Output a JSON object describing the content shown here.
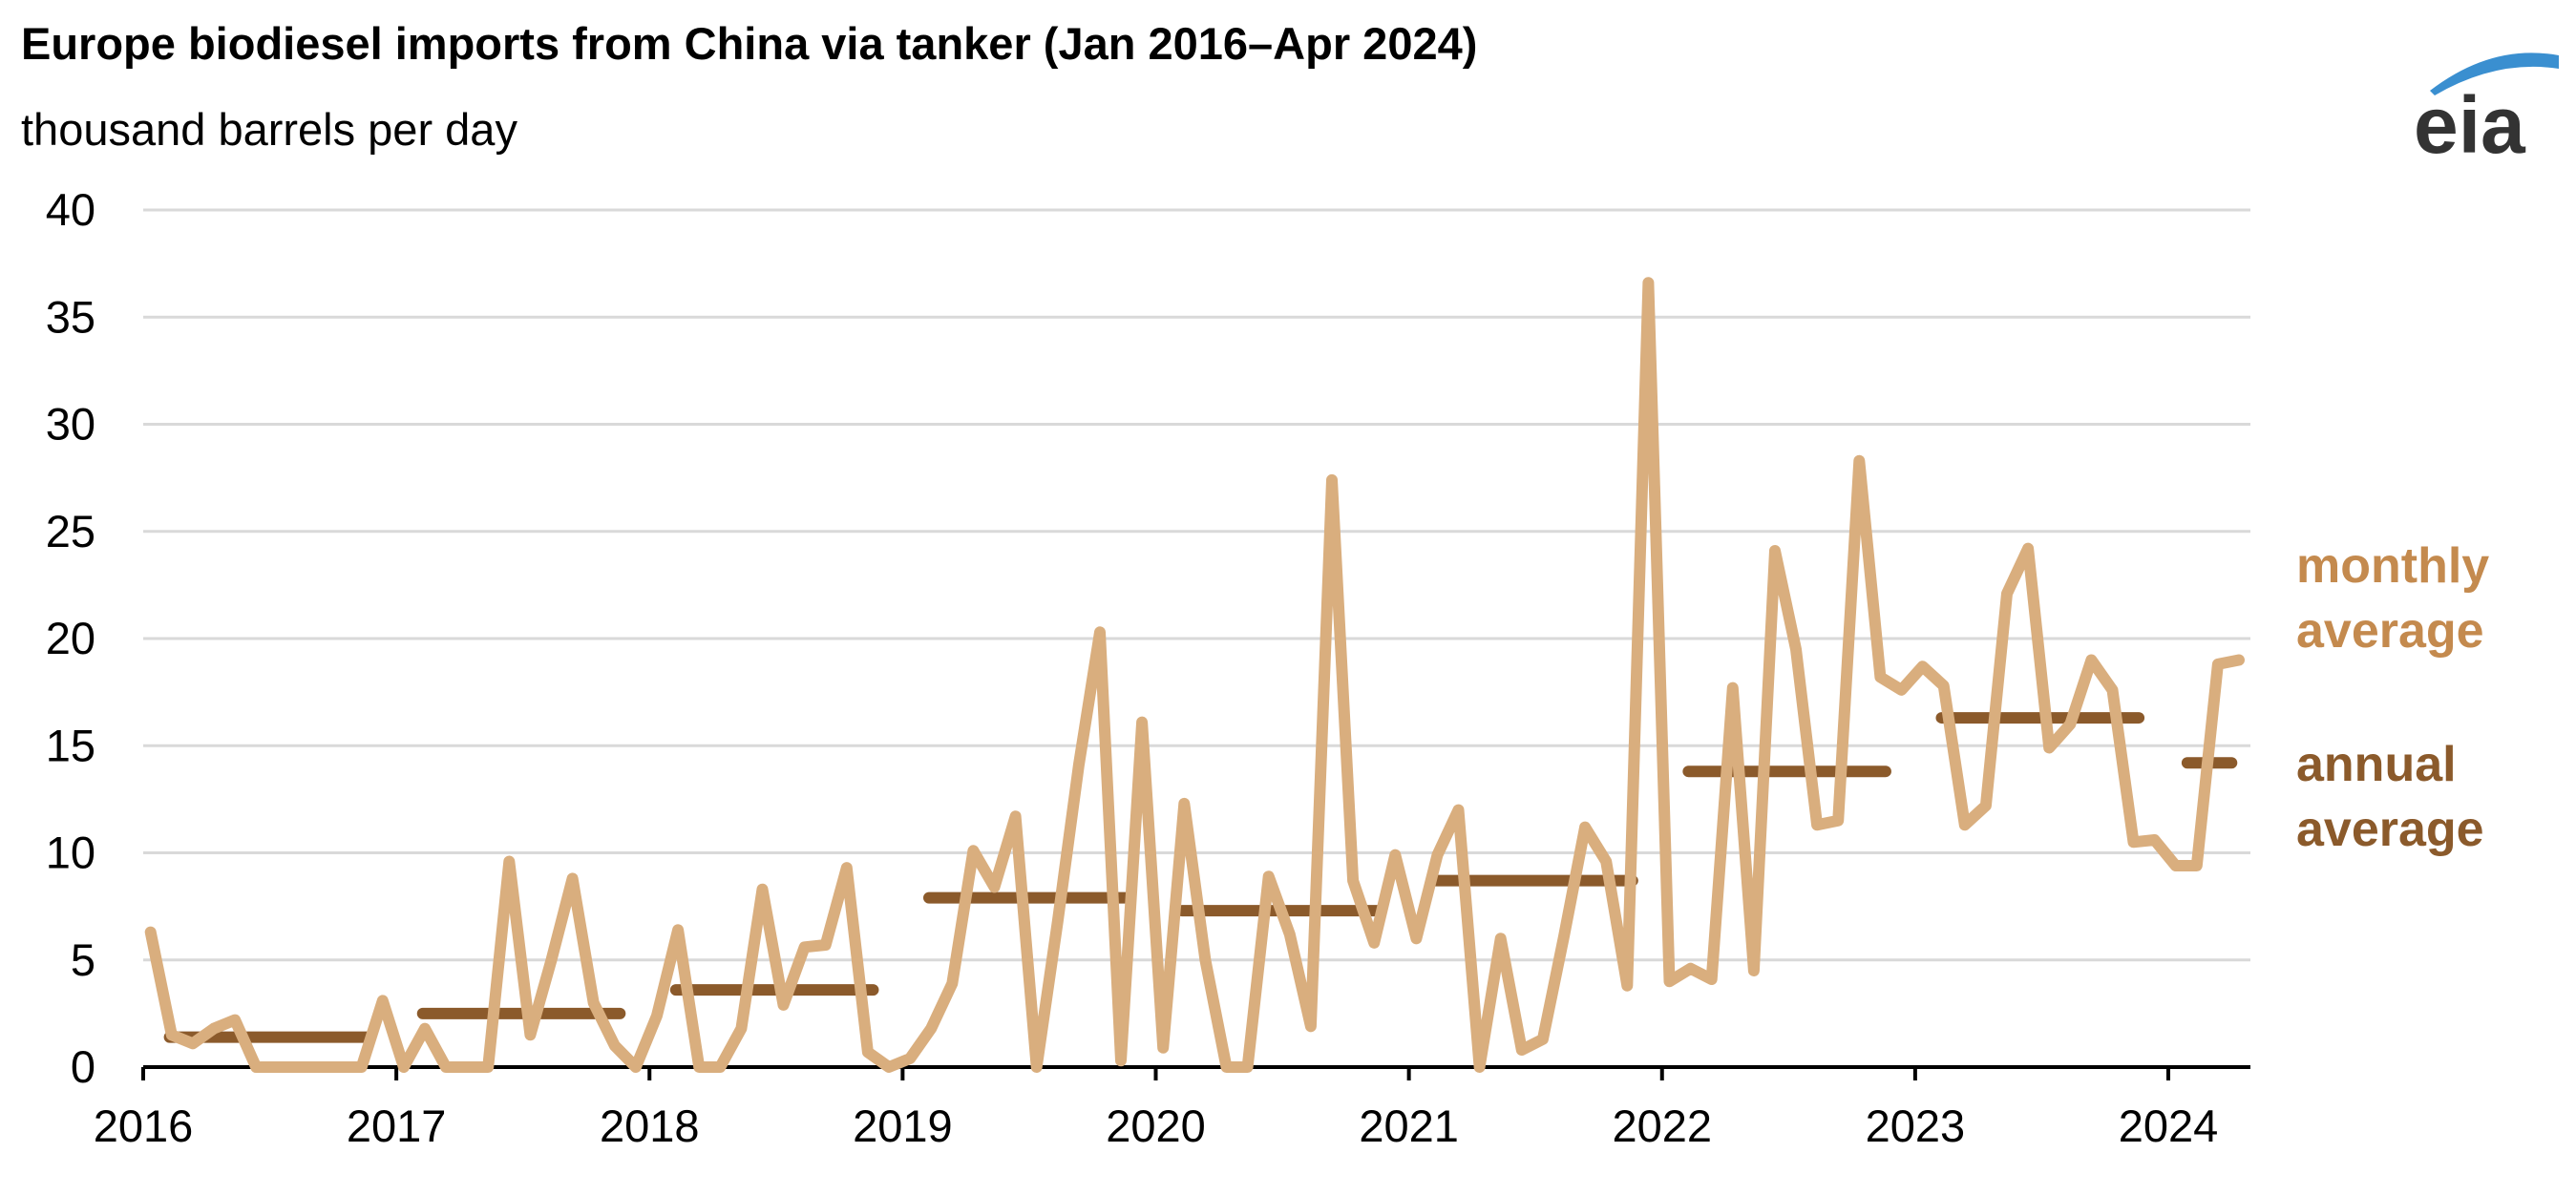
{
  "colors": {
    "monthly": "#d9ae7e",
    "monthly_label": "#c48a4e",
    "annual": "#8b5a2b",
    "grid": "#d9d9d9",
    "logo_blue": "#3a8fd0",
    "logo_text": "#333333"
  },
  "logo": {
    "text": "eia"
  },
  "chart_data": {
    "type": "line",
    "title": "Europe biodiesel imports from China via tanker (Jan 2016–Apr 2024)",
    "subtitle": "thousand barrels per day",
    "xlabel": "",
    "ylabel": "thousand barrels per day",
    "ylim": [
      0,
      40
    ],
    "yticks": [
      "0",
      "5",
      "10",
      "15",
      "20",
      "25",
      "30",
      "35",
      "40"
    ],
    "xticks": [
      "2016",
      "2017",
      "2018",
      "2019",
      "2020",
      "2021",
      "2022",
      "2023",
      "2024"
    ],
    "grid": true,
    "legend": {
      "position": "right",
      "monthly_label": [
        "monthly",
        "average"
      ],
      "annual_label": [
        "annual",
        "average"
      ]
    },
    "series": [
      {
        "name": "monthly average",
        "start": "2016-01",
        "values": [
          6.3,
          1.5,
          1.1,
          1.8,
          2.2,
          0,
          0,
          0,
          0,
          0,
          0,
          3.1,
          0,
          1.8,
          0,
          0,
          0,
          9.6,
          1.5,
          5.0,
          8.8,
          3.0,
          1.0,
          0,
          2.4,
          6.4,
          0,
          0,
          1.8,
          8.3,
          2.9,
          5.6,
          5.7,
          9.3,
          0.7,
          0,
          0.4,
          1.8,
          3.9,
          10.1,
          8.4,
          11.7,
          0,
          6.8,
          14.1,
          20.3,
          0.3,
          16.1,
          0.9,
          12.3,
          5.0,
          0,
          0,
          8.9,
          6.2,
          1.9,
          27.4,
          8.7,
          5.8,
          9.9,
          6.0,
          9.9,
          12.0,
          0,
          6.0,
          0.8,
          1.3,
          6.1,
          11.2,
          9.6,
          3.8,
          36.6,
          4.0,
          4.6,
          4.1,
          17.7,
          4.5,
          24.1,
          19.5,
          11.3,
          11.5,
          28.3,
          18.2,
          17.6,
          18.7,
          17.8,
          11.3,
          12.2,
          22.1,
          24.2,
          14.9,
          16.0,
          19.0,
          17.6,
          10.5,
          10.6,
          9.4,
          9.4,
          18.8,
          19.0
        ]
      },
      {
        "name": "annual average",
        "years": [
          "2016",
          "2017",
          "2018",
          "2019",
          "2020",
          "2021",
          "2022",
          "2023",
          "2024"
        ],
        "values": [
          1.4,
          2.5,
          3.6,
          7.9,
          7.3,
          8.7,
          13.8,
          16.3,
          14.2
        ]
      }
    ]
  }
}
